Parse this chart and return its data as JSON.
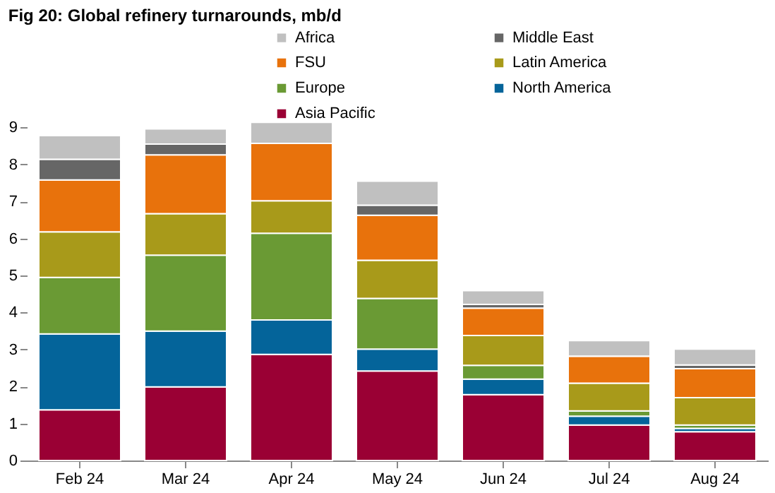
{
  "chart_data": {
    "type": "bar",
    "title": "Fig 20: Global refinery turnarounds, mb/d",
    "stacked": true,
    "categories": [
      "Feb 24",
      "Mar 24",
      "Apr 24",
      "May 24",
      "Jun 24",
      "Jul 24",
      "Aug 24"
    ],
    "series": [
      {
        "name": "Asia Pacific",
        "color": "#9a0034",
        "values": [
          1.37,
          1.99,
          2.87,
          2.42,
          1.78,
          0.96,
          0.78
        ]
      },
      {
        "name": "North America",
        "color": "#04649a",
        "values": [
          2.05,
          1.51,
          0.93,
          0.59,
          0.42,
          0.24,
          0.09
        ]
      },
      {
        "name": "Europe",
        "color": "#6a9a34",
        "values": [
          1.53,
          2.05,
          2.34,
          1.37,
          0.37,
          0.14,
          0.09
        ]
      },
      {
        "name": "Latin America",
        "color": "#a89a1a",
        "values": [
          1.23,
          1.12,
          0.88,
          1.03,
          0.81,
          0.75,
          0.74
        ]
      },
      {
        "name": "FSU",
        "color": "#e8720c",
        "values": [
          1.4,
          1.59,
          1.55,
          1.22,
          0.74,
          0.73,
          0.78
        ]
      },
      {
        "name": "Middle East",
        "color": "#666666",
        "values": [
          0.56,
          0.29,
          0,
          0.27,
          0.1,
          0,
          0.1
        ]
      },
      {
        "name": "Africa",
        "color": "#c0c0c0",
        "values": [
          0.64,
          0.41,
          0.57,
          0.65,
          0.37,
          0.42,
          0.43
        ]
      }
    ],
    "ylim": [
      0,
      9.2
    ],
    "yticks": [
      0,
      1,
      2,
      3,
      4,
      5,
      6,
      7,
      8,
      9
    ],
    "grid": false,
    "legend": "top right"
  }
}
